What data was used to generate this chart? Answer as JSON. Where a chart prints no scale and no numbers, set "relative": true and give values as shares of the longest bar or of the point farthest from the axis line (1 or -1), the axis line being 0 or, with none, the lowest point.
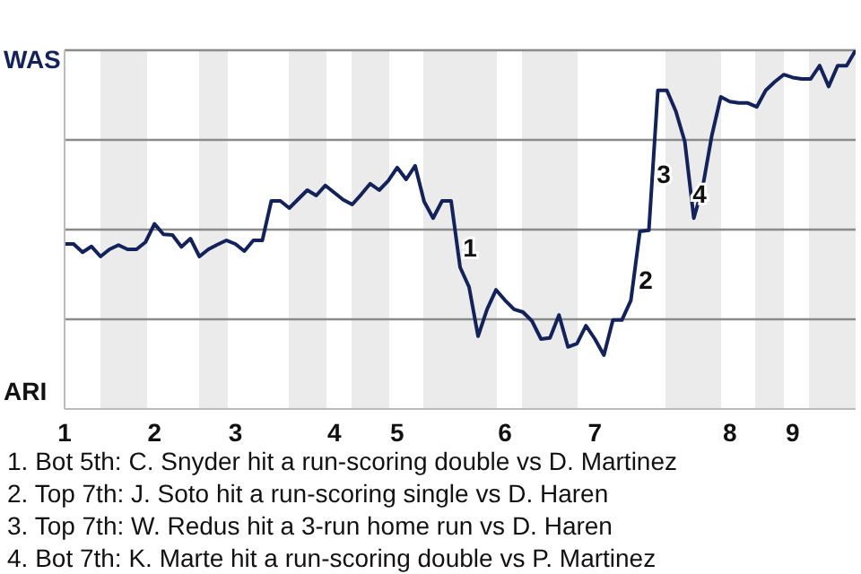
{
  "chart_data": {
    "type": "line",
    "relative": true,
    "categories": [
      "1",
      null,
      null,
      null,
      null,
      null,
      null,
      null,
      null,
      null,
      "2",
      null,
      null,
      null,
      null,
      null,
      null,
      null,
      null,
      "3",
      null,
      null,
      null,
      null,
      null,
      null,
      null,
      null,
      null,
      null,
      "4",
      null,
      null,
      null,
      null,
      null,
      null,
      "5",
      null,
      null,
      null,
      null,
      null,
      null,
      null,
      null,
      null,
      null,
      null,
      "6",
      null,
      null,
      null,
      null,
      null,
      null,
      null,
      null,
      null,
      "7",
      null,
      null,
      null,
      null,
      null,
      null,
      null,
      null,
      null,
      null,
      null,
      null,
      null,
      null,
      "8",
      null,
      null,
      null,
      null,
      null,
      null,
      "9",
      null,
      null,
      null,
      null,
      null,
      null,
      null
    ],
    "series": [
      {
        "color": "#14225a",
        "values": [
          0.46,
          0.46,
          0.437,
          0.453,
          0.425,
          0.445,
          0.457,
          0.445,
          0.445,
          0.465,
          0.516,
          0.487,
          0.485,
          0.452,
          0.475,
          0.425,
          0.445,
          0.458,
          0.47,
          0.46,
          0.44,
          0.47,
          0.47,
          0.58,
          0.58,
          0.56,
          0.585,
          0.61,
          0.595,
          0.623,
          0.603,
          0.583,
          0.57,
          0.598,
          0.628,
          0.61,
          0.636,
          0.673,
          0.64,
          0.678,
          0.578,
          0.532,
          0.58,
          0.58,
          0.395,
          0.34,
          0.203,
          0.278,
          0.332,
          0.303,
          0.278,
          0.27,
          0.245,
          0.195,
          0.198,
          0.262,
          0.173,
          0.182,
          0.232,
          0.195,
          0.15,
          0.248,
          0.248,
          0.303,
          0.495,
          0.498,
          0.888,
          0.888,
          0.83,
          0.745,
          0.532,
          0.62,
          0.762,
          0.87,
          0.857,
          0.853,
          0.853,
          0.842,
          0.888,
          0.912,
          0.932,
          0.924,
          0.92,
          0.92,
          0.957,
          0.899,
          0.957,
          0.957,
          1
        ]
      }
    ],
    "grid": "y",
    "marker": "none",
    "line_style": "solid",
    "annotations": [
      "WAS",
      "ARI",
      "1",
      "2",
      "3",
      "4",
      "1. Bot 5th: C. Snyder hit a run-scoring double vs D. Martinez",
      "2. Top 7th: J. Soto hit a run-scoring single vs D. Haren",
      "3. Top 7th: W. Redus hit a 3-run home run vs D. Haren",
      "4. Bot 7th: K. Marte hit a run-scoring double vs P. Martinez"
    ]
  }
}
